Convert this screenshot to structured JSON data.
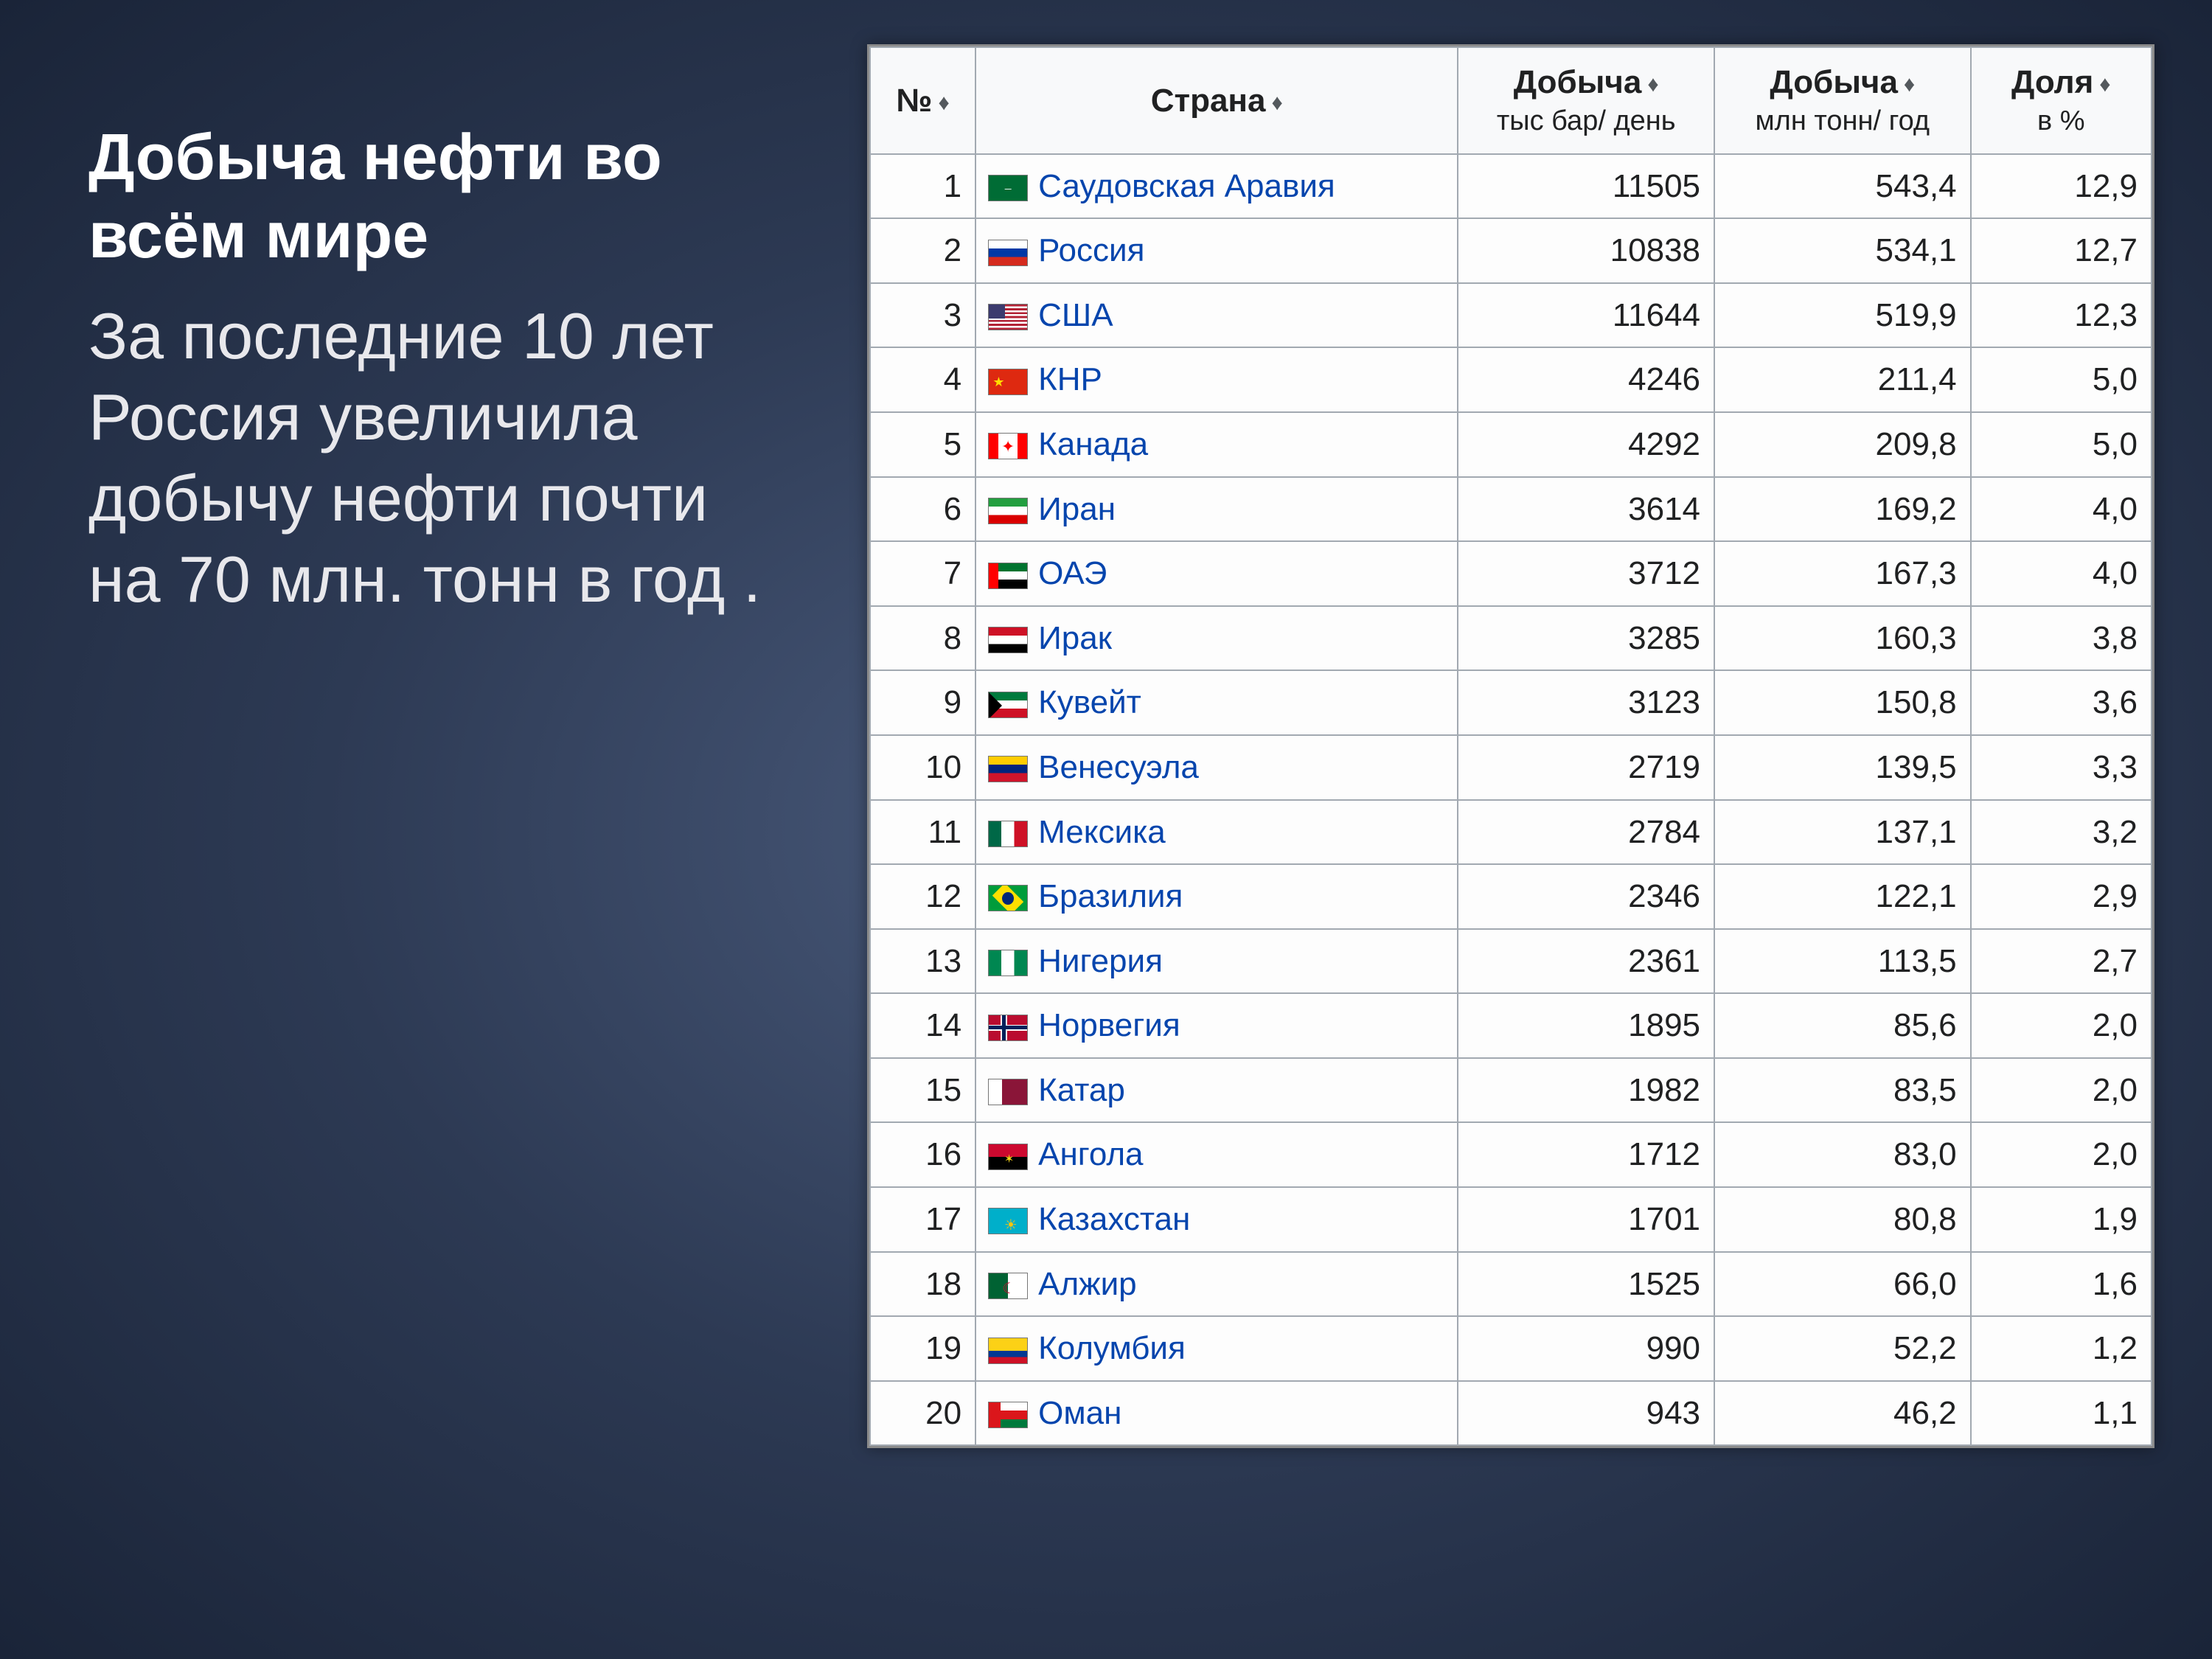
{
  "title": "Добыча нефти во всём мире",
  "body": "За последние 10 лет Россия увеличила добычу нефти почти на 70 млн. тонн в год .",
  "colors": {
    "link": "#0645ad",
    "border": "#a2a9b1",
    "header_bg": "#f8f9fa",
    "text": "#202122"
  },
  "table": {
    "columns": [
      {
        "id": "rank",
        "label": "№",
        "sortable": true
      },
      {
        "id": "country",
        "label": "Страна",
        "sortable": true
      },
      {
        "id": "barrels",
        "label": "Добыча",
        "sub": "тыс бар/ день",
        "sortable": true
      },
      {
        "id": "tonnes",
        "label": "Добыча",
        "sub": "млн тонн/ год",
        "sortable": true
      },
      {
        "id": "share",
        "label": "Доля",
        "sub": "в %",
        "sortable": true
      }
    ],
    "rows": [
      {
        "rank": "1",
        "country": "Саудовская Аравия",
        "flag": "sa",
        "barrels": "11505",
        "tonnes": "543,4",
        "share": "12,9"
      },
      {
        "rank": "2",
        "country": "Россия",
        "flag": "ru",
        "barrels": "10838",
        "tonnes": "534,1",
        "share": "12,7"
      },
      {
        "rank": "3",
        "country": "США",
        "flag": "us",
        "barrels": "11644",
        "tonnes": "519,9",
        "share": "12,3"
      },
      {
        "rank": "4",
        "country": "КНР",
        "flag": "cn",
        "barrels": "4246",
        "tonnes": "211,4",
        "share": "5,0"
      },
      {
        "rank": "5",
        "country": "Канада",
        "flag": "ca",
        "barrels": "4292",
        "tonnes": "209,8",
        "share": "5,0"
      },
      {
        "rank": "6",
        "country": "Иран",
        "flag": "ir",
        "barrels": "3614",
        "tonnes": "169,2",
        "share": "4,0"
      },
      {
        "rank": "7",
        "country": "ОАЭ",
        "flag": "ae",
        "barrels": "3712",
        "tonnes": "167,3",
        "share": "4,0"
      },
      {
        "rank": "8",
        "country": "Ирак",
        "flag": "iq",
        "barrels": "3285",
        "tonnes": "160,3",
        "share": "3,8"
      },
      {
        "rank": "9",
        "country": "Кувейт",
        "flag": "kw",
        "barrels": "3123",
        "tonnes": "150,8",
        "share": "3,6"
      },
      {
        "rank": "10",
        "country": "Венесуэла",
        "flag": "ve",
        "barrels": "2719",
        "tonnes": "139,5",
        "share": "3,3"
      },
      {
        "rank": "11",
        "country": "Мексика",
        "flag": "mx",
        "barrels": "2784",
        "tonnes": "137,1",
        "share": "3,2"
      },
      {
        "rank": "12",
        "country": "Бразилия",
        "flag": "br",
        "barrels": "2346",
        "tonnes": "122,1",
        "share": "2,9"
      },
      {
        "rank": "13",
        "country": "Нигерия",
        "flag": "ng",
        "barrels": "2361",
        "tonnes": "113,5",
        "share": "2,7"
      },
      {
        "rank": "14",
        "country": "Норвегия",
        "flag": "no",
        "barrels": "1895",
        "tonnes": "85,6",
        "share": "2,0"
      },
      {
        "rank": "15",
        "country": "Катар",
        "flag": "qa",
        "barrels": "1982",
        "tonnes": "83,5",
        "share": "2,0"
      },
      {
        "rank": "16",
        "country": "Ангола",
        "flag": "ao",
        "barrels": "1712",
        "tonnes": "83,0",
        "share": "2,0"
      },
      {
        "rank": "17",
        "country": "Казахстан",
        "flag": "kz",
        "barrels": "1701",
        "tonnes": "80,8",
        "share": "1,9"
      },
      {
        "rank": "18",
        "country": "Алжир",
        "flag": "dz",
        "barrels": "1525",
        "tonnes": "66,0",
        "share": "1,6"
      },
      {
        "rank": "19",
        "country": "Колумбия",
        "flag": "co",
        "barrels": "990",
        "tonnes": "52,2",
        "share": "1,2"
      },
      {
        "rank": "20",
        "country": "Оман",
        "flag": "om",
        "barrels": "943",
        "tonnes": "46,2",
        "share": "1,1"
      }
    ]
  },
  "flags": {
    "sa": {
      "bg": "#006c35",
      "extra": "<div style='position:absolute;left:10%;top:30%;width:80%;height:40%;color:#fff;font-size:10px;text-align:center'>ـــ</div>"
    },
    "ru": {
      "stripes": [
        [
          "#ffffff",
          "0% 33%"
        ],
        [
          "#0039a6",
          "33% 66%"
        ],
        [
          "#d52b1e",
          "66% 100%"
        ]
      ]
    },
    "us": {
      "stripes_h": 13,
      "c1": "#b22234",
      "c2": "#ffffff",
      "canton": "#3c3b6e"
    },
    "cn": {
      "bg": "#de2910",
      "extra": "<div style='position:absolute;left:10%;top:15%;color:#ffde00;font-size:18px'>★</div>"
    },
    "ca": {
      "bars": [
        [
          "#ff0000",
          "0% 25%"
        ],
        [
          "#ffffff",
          "25% 75%"
        ],
        [
          "#ff0000",
          "75% 100%"
        ]
      ],
      "extra": "<div style='position:absolute;left:0;right:0;top:8%;text-align:center;color:#ff0000;font-size:22px'>✦</div>"
    },
    "ir": {
      "stripes": [
        [
          "#239f40",
          "0% 33%"
        ],
        [
          "#ffffff",
          "33% 66%"
        ],
        [
          "#da0000",
          "66% 100%"
        ]
      ]
    },
    "ae": {
      "extra": "<div style='position:absolute;left:0;top:0;width:25%;height:100%;background:#ff0000'></div><div style='position:absolute;left:25%;top:0;width:75%;height:33%;background:#00732f'></div><div style='position:absolute;left:25%;top:33%;width:75%;height:34%;background:#fff'></div><div style='position:absolute;left:25%;top:67%;width:75%;height:33%;background:#000'></div>"
    },
    "iq": {
      "stripes": [
        [
          "#ce1126",
          "0% 33%"
        ],
        [
          "#ffffff",
          "33% 66%"
        ],
        [
          "#000000",
          "66% 100%"
        ]
      ]
    },
    "kw": {
      "extra": "<div style='position:absolute;left:0;top:0;width:100%;height:33%;background:#007a3d'></div><div style='position:absolute;left:0;top:33%;width:100%;height:34%;background:#fff'></div><div style='position:absolute;left:0;top:67%;width:100%;height:33%;background:#ce1126'></div><div style='position:absolute;left:0;top:0;width:0;height:0;border-top:18px solid transparent;border-bottom:18px solid transparent;border-left:18px solid #000'></div>"
    },
    "ve": {
      "stripes": [
        [
          "#ffcc00",
          "0% 33%"
        ],
        [
          "#00247d",
          "33% 66%"
        ],
        [
          "#cf142b",
          "66% 100%"
        ]
      ]
    },
    "mx": {
      "bars": [
        [
          "#006847",
          "0% 33%"
        ],
        [
          "#ffffff",
          "33% 66%"
        ],
        [
          "#ce1126",
          "66% 100%"
        ]
      ]
    },
    "br": {
      "bg": "#009c3b",
      "extra": "<div style='position:absolute;left:15%;top:15%;width:70%;height:70%;background:#ffdf00;transform:rotate(45deg)'></div><div style='position:absolute;left:35%;top:25%;width:30%;height:50%;background:#002776;border-radius:50%'></div>"
    },
    "ng": {
      "bars": [
        [
          "#008751",
          "0% 33%"
        ],
        [
          "#ffffff",
          "33% 66%"
        ],
        [
          "#008751",
          "66% 100%"
        ]
      ]
    },
    "no": {
      "bg": "#ba0c2f",
      "extra": "<div style='position:absolute;left:30%;top:0;width:18%;height:100%;background:#fff'></div><div style='position:absolute;left:0;top:38%;width:100%;height:24%;background:#fff'></div><div style='position:absolute;left:34%;top:0;width:10%;height:100%;background:#00205b'></div><div style='position:absolute;left:0;top:43%;width:100%;height:14%;background:#00205b'></div>"
    },
    "qa": {
      "extra": "<div style='position:absolute;left:0;top:0;width:35%;height:100%;background:#fff'></div><div style='position:absolute;left:35%;top:0;width:65%;height:100%;background:#8a1538'></div>"
    },
    "ao": {
      "stripes": [
        [
          "#cc092f",
          "0% 50%"
        ],
        [
          "#000000",
          "50% 100%"
        ]
      ],
      "extra": "<div style='position:absolute;left:40%;top:30%;color:#f7d618;font-size:16px'>✶</div>"
    },
    "kz": {
      "bg": "#00afca",
      "extra": "<div style='position:absolute;left:40%;top:25%;color:#fec50c;font-size:20px'>☀</div>"
    },
    "dz": {
      "bars": [
        [
          "#006233",
          "0% 50%"
        ],
        [
          "#ffffff",
          "50% 100%"
        ]
      ],
      "extra": "<div style='position:absolute;left:35%;top:20%;color:#d21034;font-size:20px'>☾</div>"
    },
    "co": {
      "stripes": [
        [
          "#fcd116",
          "0% 50%"
        ],
        [
          "#003893",
          "50% 75%"
        ],
        [
          "#ce1126",
          "75% 100%"
        ]
      ]
    },
    "om": {
      "extra": "<div style='position:absolute;left:0;top:0;width:30%;height:100%;background:#db161b'></div><div style='position:absolute;left:30%;top:0;width:70%;height:33%;background:#fff'></div><div style='position:absolute;left:30%;top:33%;width:70%;height:34%;background:#db161b'></div><div style='position:absolute;left:30%;top:67%;width:70%;height:33%;background:#007a3d'></div>"
    }
  }
}
